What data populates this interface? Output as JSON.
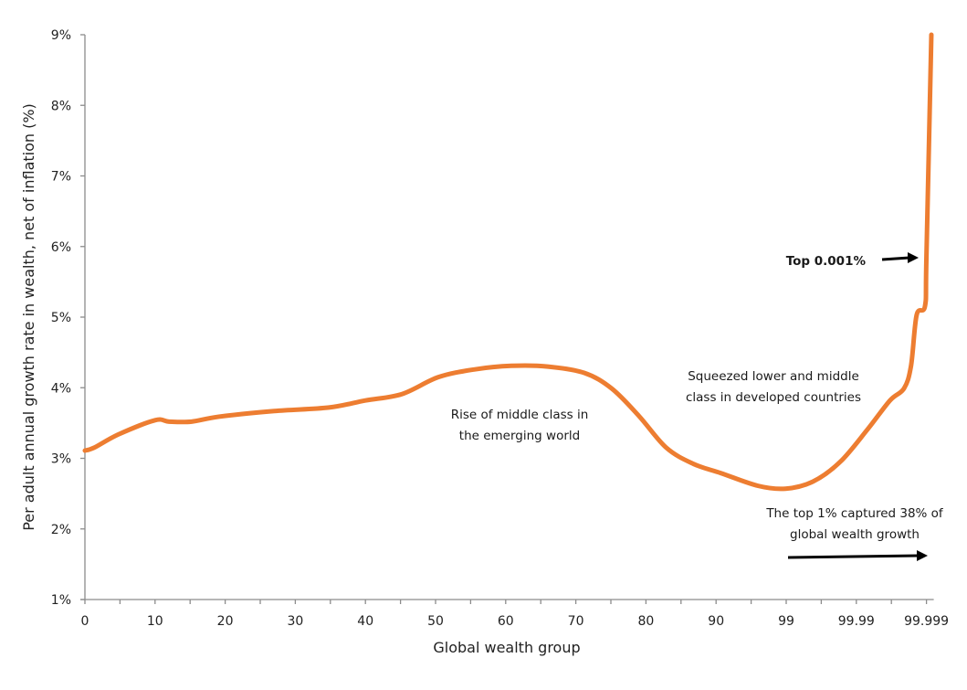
{
  "chart_data": {
    "type": "line",
    "title": "",
    "xlabel": "Global wealth group",
    "ylabel": "Per adult annual growth rate in wealth, net of inflation (%)",
    "ylim": [
      1,
      9
    ],
    "x_scale_note": "categorical tick positions",
    "x_tick_labels": [
      "0",
      "10",
      "20",
      "30",
      "40",
      "50",
      "60",
      "70",
      "80",
      "90",
      "99",
      "99.99",
      "99.999"
    ],
    "y_tick_labels": [
      "1%",
      "2%",
      "3%",
      "4%",
      "5%",
      "6%",
      "7%",
      "8%",
      "9%"
    ],
    "y_ticks": [
      1,
      2,
      3,
      4,
      5,
      6,
      7,
      8,
      9
    ],
    "grid": false,
    "line_color": "#ED7D31",
    "series": [
      {
        "name": "Growth rate",
        "x_position": [
          0,
          0.13,
          0.48,
          1.0,
          1.2,
          1.52,
          1.91,
          2.7,
          3.48,
          4.0,
          4.52,
          5.04,
          5.56,
          6.08,
          6.6,
          7.12,
          7.51,
          7.9,
          8.29,
          8.68,
          9.07,
          9.6,
          9.99,
          10.38,
          10.77,
          11.16,
          11.48,
          11.68,
          11.78,
          11.86,
          11.98,
          12.0,
          12.07
        ],
        "values": [
          3.11,
          3.15,
          3.34,
          3.54,
          3.52,
          3.52,
          3.59,
          3.67,
          3.72,
          3.82,
          3.91,
          4.15,
          4.26,
          4.31,
          4.3,
          4.21,
          3.99,
          3.6,
          3.15,
          2.92,
          2.79,
          2.61,
          2.57,
          2.67,
          2.95,
          3.41,
          3.82,
          3.99,
          4.31,
          5.03,
          5.16,
          5.87,
          9.0
        ]
      }
    ],
    "annotations": [
      {
        "id": "middle",
        "lines": [
          "Rise of middle class in",
          "the emerging world"
        ]
      },
      {
        "id": "squeezed",
        "lines": [
          "Squeezed lower and middle",
          "class in developed countries"
        ]
      },
      {
        "id": "top001",
        "lines": [
          "Top 0.001%"
        ]
      },
      {
        "id": "top1",
        "lines": [
          "The top 1% captured 38% of",
          "global wealth growth"
        ]
      }
    ]
  }
}
